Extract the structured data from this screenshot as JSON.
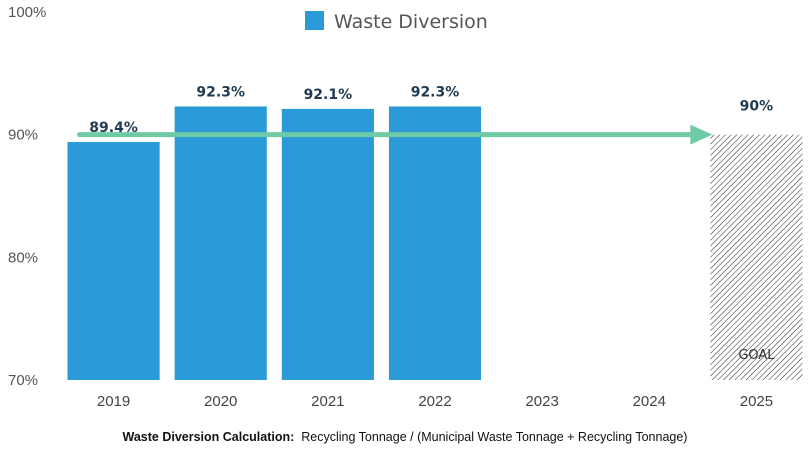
{
  "chart_data": {
    "type": "bar",
    "categories": [
      "2019",
      "2020",
      "2021",
      "2022",
      "2023",
      "2024",
      "2025"
    ],
    "series": [
      {
        "name": "Waste Diversion",
        "values": [
          89.4,
          92.3,
          92.1,
          92.3,
          null,
          null,
          null
        ]
      }
    ],
    "data_labels": [
      "89.4%",
      "92.3%",
      "92.1%",
      "92.3%",
      "",
      "",
      ""
    ],
    "y_ticks": [
      "70%",
      "80%",
      "90%",
      "100%"
    ],
    "ylim": [
      70,
      100
    ],
    "goal": {
      "category": "2025",
      "value": 90,
      "value_label": "90%",
      "label": "GOAL"
    },
    "target_line": {
      "from": "2019",
      "to": "2025",
      "value": 90
    },
    "title": "",
    "xlabel": "",
    "ylabel": "",
    "legend_position": "top-center",
    "grid": false,
    "colors": {
      "bar": "#2a9bd8",
      "arrow": "#6fcaa6",
      "label": "#1f3a52"
    }
  },
  "footnote": {
    "label": "Waste Diversion Calculation:",
    "formula": "Recycling Tonnage  / (Municipal Waste Tonnage  + Recycling Tonnage)"
  }
}
